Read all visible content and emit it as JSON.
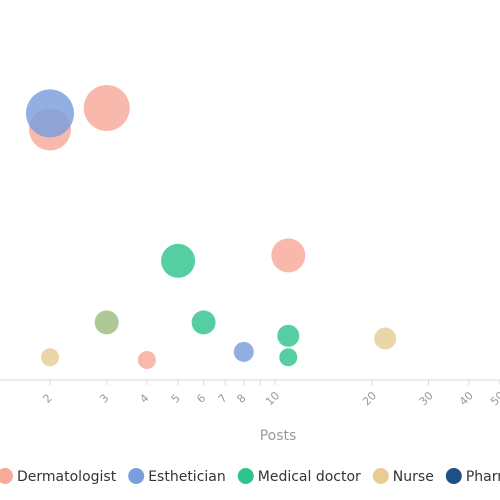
{
  "chart_data": {
    "type": "scatter",
    "title": "",
    "xlabel": "Posts",
    "ylabel": "",
    "x_scale": "log",
    "xlim": [
      1.6,
      50
    ],
    "ylim": [
      0,
      100
    ],
    "x_ticks": [
      2,
      3,
      4,
      5,
      6,
      7,
      8,
      9,
      10,
      20,
      30,
      40,
      50
    ],
    "x_tick_labels": [
      "2",
      "3",
      "4",
      "5",
      "6",
      "7",
      "8",
      "",
      "10",
      "20",
      "30",
      "40",
      "50"
    ],
    "grid": false,
    "legend": "bottom",
    "series": [
      {
        "name": "Dermatologist",
        "color": "#f7a99a",
        "points": [
          {
            "x": 2,
            "y": 89,
            "size": 21
          },
          {
            "x": 3,
            "y": 97,
            "size": 23
          },
          {
            "x": 4,
            "y": 3,
            "size": 9
          },
          {
            "x": 11,
            "y": 42,
            "size": 17
          }
        ]
      },
      {
        "name": "Esthetician",
        "color": "#7a9ddd",
        "points": [
          {
            "x": 2,
            "y": 95,
            "size": 24
          },
          {
            "x": 8,
            "y": 6,
            "size": 10
          }
        ]
      },
      {
        "name": "Medical doctor",
        "color": "#2fc48c",
        "points": [
          {
            "x": 5,
            "y": 40,
            "size": 17
          },
          {
            "x": 6,
            "y": 17,
            "size": 12
          },
          {
            "x": 11,
            "y": 12,
            "size": 11
          },
          {
            "x": 11,
            "y": 4,
            "size": 9
          }
        ]
      },
      {
        "name": "Nurse",
        "color": "#e8cc96",
        "points": [
          {
            "x": 2,
            "y": 4,
            "size": 9
          },
          {
            "x": 22,
            "y": 11,
            "size": 11
          }
        ]
      },
      {
        "name": "Pharmacist",
        "color": "#1e4f85",
        "points": []
      },
      {
        "name": "",
        "color": "#9cbd7e",
        "points": [
          {
            "x": 3,
            "y": 17,
            "size": 12
          }
        ]
      }
    ]
  }
}
